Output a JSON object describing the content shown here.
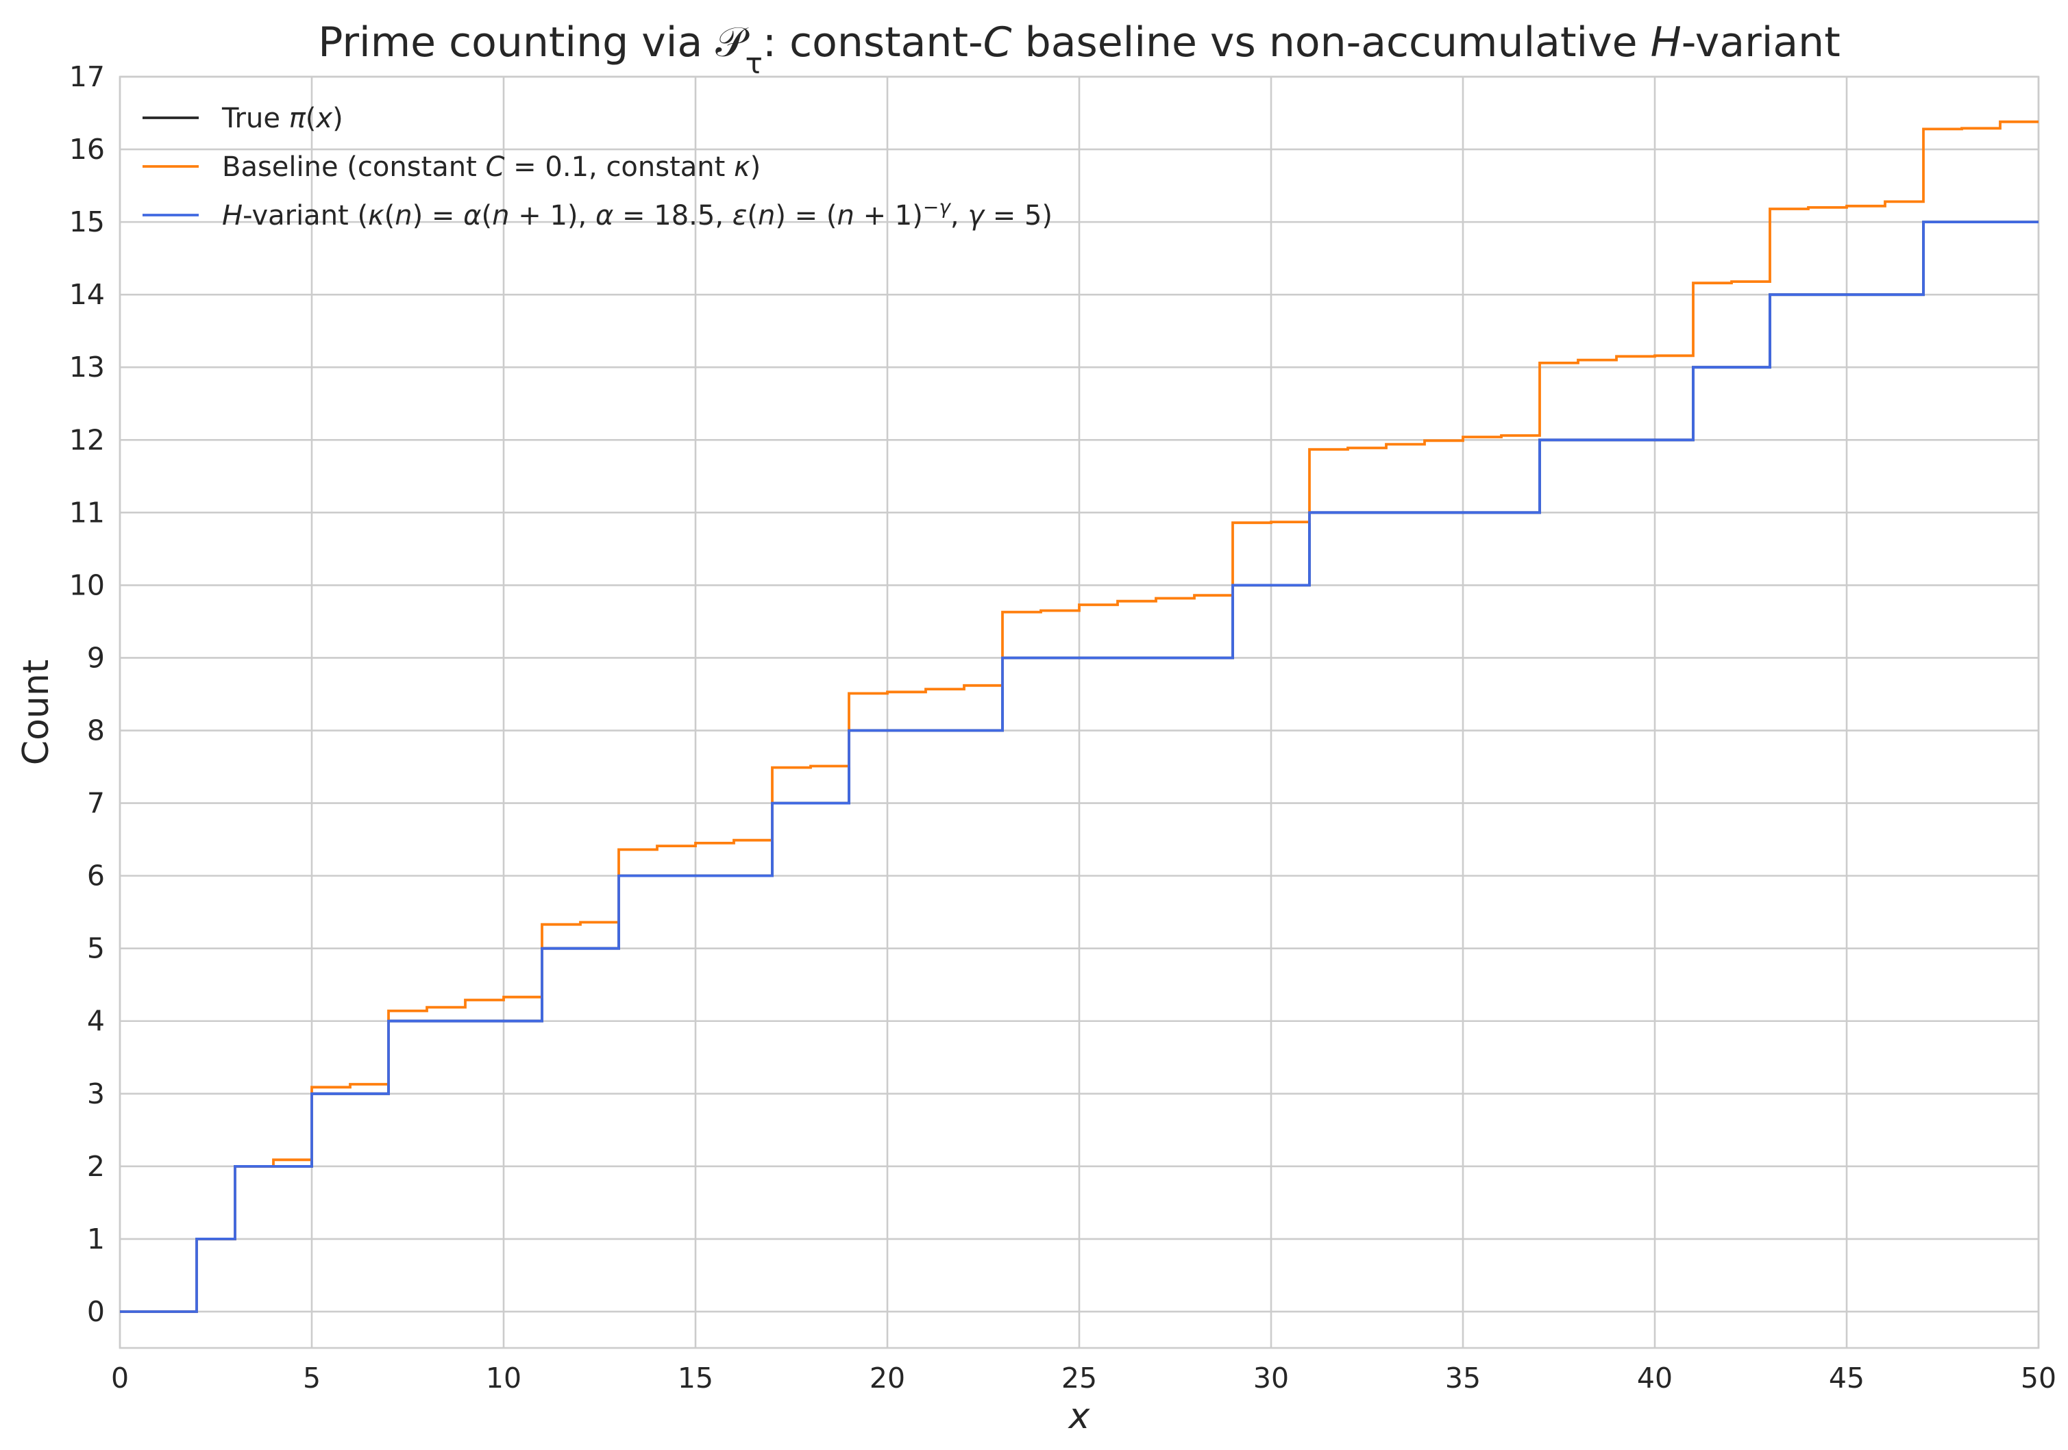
{
  "chart_data": {
    "type": "line",
    "title": "Prime counting via 𝒫τ: constant-C baseline vs non-accumulative H-variant",
    "title_parts": [
      {
        "text": "Prime counting via ",
        "italic": false
      },
      {
        "text": "𝒫",
        "italic": false
      },
      {
        "text": "τ",
        "italic": false,
        "sub": true
      },
      {
        "text": ": constant-",
        "italic": false
      },
      {
        "text": "C",
        "italic": true
      },
      {
        "text": " baseline vs non-accumulative ",
        "italic": false
      },
      {
        "text": "H",
        "italic": true
      },
      {
        "text": "-variant",
        "italic": false
      }
    ],
    "xlabel": "x",
    "ylabel": "Count",
    "xlim": [
      0,
      50
    ],
    "ylim": [
      -0.5,
      17
    ],
    "xticks": [
      0,
      5,
      10,
      15,
      20,
      25,
      30,
      35,
      40,
      45,
      50
    ],
    "yticks": [
      0,
      1,
      2,
      3,
      4,
      5,
      6,
      7,
      8,
      9,
      10,
      11,
      12,
      13,
      14,
      15,
      16,
      17
    ],
    "grid": true,
    "legend_position": "top-left",
    "step_style": "post",
    "series": [
      {
        "name": "True π(x)",
        "color": "#262626",
        "label_parts": [
          {
            "text": "True ",
            "italic": false
          },
          {
            "text": "π",
            "italic": true
          },
          {
            "text": "(",
            "italic": false
          },
          {
            "text": "x",
            "italic": true
          },
          {
            "text": ")",
            "italic": false
          }
        ],
        "x": [
          0,
          2,
          3,
          5,
          7,
          11,
          13,
          17,
          19,
          23,
          29,
          31,
          37,
          41,
          43,
          47,
          50
        ],
        "y": [
          0,
          1,
          2,
          3,
          4,
          5,
          6,
          7,
          8,
          9,
          10,
          11,
          12,
          13,
          14,
          15,
          15
        ]
      },
      {
        "name": "Baseline (constant C = 0.1, constant κ)",
        "color": "#ff7f0e",
        "label_parts": [
          {
            "text": "Baseline (constant ",
            "italic": false
          },
          {
            "text": "C",
            "italic": true
          },
          {
            "text": " = 0.1, constant ",
            "italic": false
          },
          {
            "text": "κ",
            "italic": true
          },
          {
            "text": ")",
            "italic": false
          }
        ],
        "x": [
          0,
          2,
          3,
          4,
          5,
          6,
          7,
          8,
          9,
          10,
          11,
          12,
          13,
          14,
          15,
          16,
          17,
          18,
          19,
          20,
          21,
          22,
          23,
          24,
          25,
          26,
          27,
          28,
          29,
          30,
          31,
          32,
          33,
          34,
          35,
          36,
          37,
          38,
          39,
          40,
          41,
          42,
          43,
          44,
          45,
          46,
          47,
          48,
          49,
          50
        ],
        "y": [
          0,
          1,
          2,
          2.09,
          3.09,
          3.13,
          4.14,
          4.19,
          4.29,
          4.33,
          5.33,
          5.36,
          6.36,
          6.41,
          6.45,
          6.49,
          7.49,
          7.51,
          8.51,
          8.53,
          8.57,
          8.62,
          9.63,
          9.65,
          9.73,
          9.78,
          9.82,
          9.86,
          10.86,
          10.87,
          11.87,
          11.89,
          11.94,
          11.99,
          12.04,
          12.06,
          13.06,
          13.1,
          13.15,
          13.16,
          14.16,
          14.18,
          15.18,
          15.2,
          15.22,
          15.28,
          16.28,
          16.29,
          16.38,
          16.38
        ]
      },
      {
        "name": "H-variant (κ(n) = α(n + 1), α = 18.5, ε(n) = (n + 1)^−γ, γ = 5)",
        "color": "#4169e1",
        "label_parts": [
          {
            "text": "H",
            "italic": true
          },
          {
            "text": "-variant (",
            "italic": false
          },
          {
            "text": "κ",
            "italic": true
          },
          {
            "text": "(",
            "italic": false
          },
          {
            "text": "n",
            "italic": true
          },
          {
            "text": ") = ",
            "italic": false
          },
          {
            "text": "α",
            "italic": true
          },
          {
            "text": "(",
            "italic": false
          },
          {
            "text": "n",
            "italic": true
          },
          {
            "text": " + 1), ",
            "italic": false
          },
          {
            "text": "α",
            "italic": true
          },
          {
            "text": " = 18.5, ",
            "italic": false
          },
          {
            "text": "ε",
            "italic": true
          },
          {
            "text": "(",
            "italic": false
          },
          {
            "text": "n",
            "italic": true
          },
          {
            "text": ") = (",
            "italic": false
          },
          {
            "text": "n",
            "italic": true
          },
          {
            "text": " + 1)",
            "italic": false
          },
          {
            "text": "−γ",
            "italic": true,
            "sup": true
          },
          {
            "text": ", ",
            "italic": false
          },
          {
            "text": "γ",
            "italic": true
          },
          {
            "text": " = 5)",
            "italic": false
          }
        ],
        "x": [
          0,
          2,
          3,
          5,
          7,
          11,
          13,
          17,
          19,
          23,
          29,
          31,
          37,
          41,
          43,
          47,
          50
        ],
        "y": [
          0,
          1,
          2,
          3,
          4,
          5,
          6,
          7,
          8,
          9,
          10,
          11,
          12,
          13,
          14,
          15,
          15
        ]
      }
    ],
    "colors": {
      "grid": "#cccccc",
      "spine": "#cccccc",
      "text": "#262626",
      "background": "#ffffff"
    }
  }
}
